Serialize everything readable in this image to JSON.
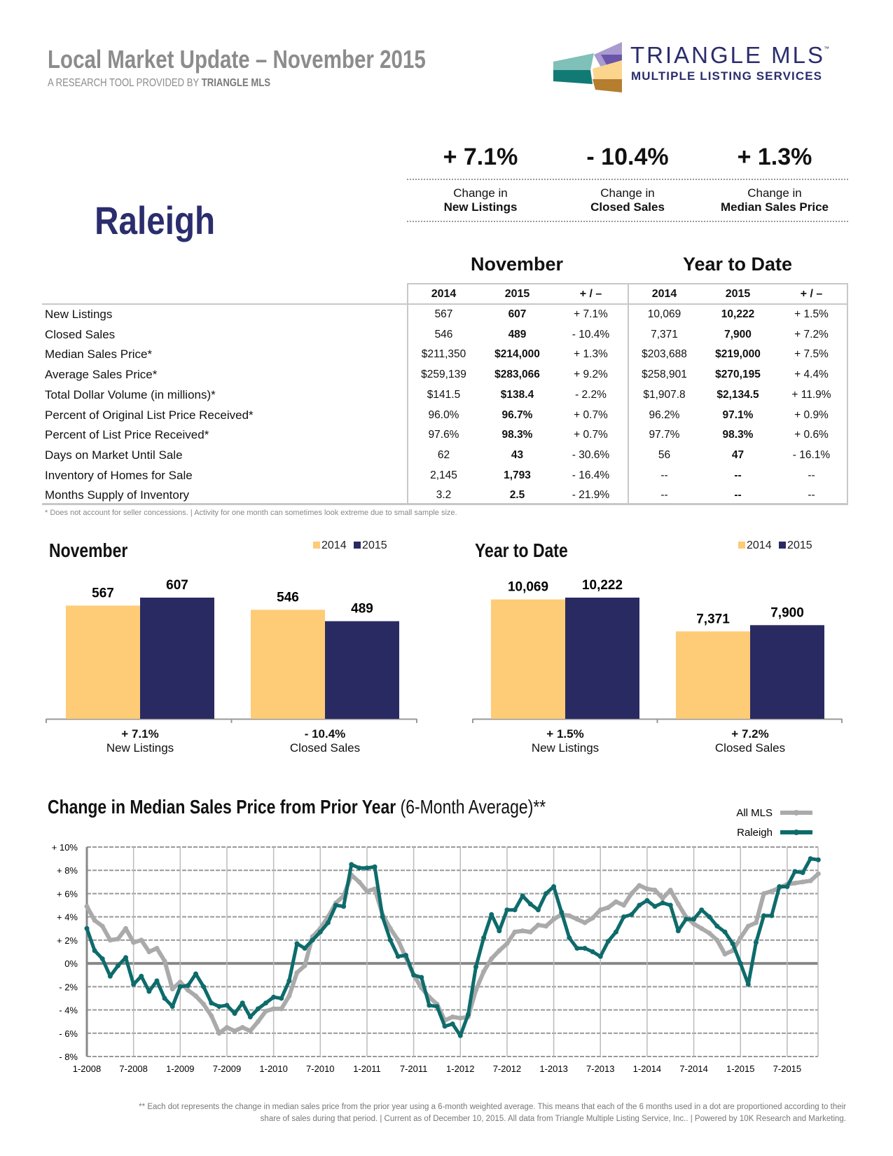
{
  "header": {
    "title": "Local Market Update – November 2015",
    "subtitle_prefix": "A RESEARCH TOOL PROVIDED BY ",
    "subtitle_brand": "TRIANGLE MLS",
    "logo_text": "TRIANGLE MLS",
    "logo_tm": "™",
    "logo_tagline": "MULTIPLE LISTING SERVICES"
  },
  "area": "Raleigh",
  "kpis": [
    {
      "value": "+ 7.1%",
      "line1": "Change in",
      "line2": "New Listings"
    },
    {
      "value": "- 10.4%",
      "line1": "Change in",
      "line2": "Closed Sales"
    },
    {
      "value": "+ 1.3%",
      "line1": "Change in",
      "line2": "Median Sales Price"
    }
  ],
  "table": {
    "group1": "November",
    "group2": "Year to Date",
    "columns": [
      "2014",
      "2015",
      "+ / –",
      "2014",
      "2015",
      "+ / –"
    ],
    "rows": [
      {
        "label": "New Listings",
        "cells": [
          "567",
          "607",
          "+ 7.1%",
          "10,069",
          "10,222",
          "+ 1.5%"
        ]
      },
      {
        "label": "Closed Sales",
        "cells": [
          "546",
          "489",
          "- 10.4%",
          "7,371",
          "7,900",
          "+ 7.2%"
        ]
      },
      {
        "label": "Median Sales Price*",
        "cells": [
          "$211,350",
          "$214,000",
          "+ 1.3%",
          "$203,688",
          "$219,000",
          "+ 7.5%"
        ]
      },
      {
        "label": "Average Sales Price*",
        "cells": [
          "$259,139",
          "$283,066",
          "+ 9.2%",
          "$258,901",
          "$270,195",
          "+ 4.4%"
        ]
      },
      {
        "label": "Total Dollar Volume (in millions)*",
        "cells": [
          "$141.5",
          "$138.4",
          "- 2.2%",
          "$1,907.8",
          "$2,134.5",
          "+ 11.9%"
        ]
      },
      {
        "label": "Percent of Original List Price Received*",
        "cells": [
          "96.0%",
          "96.7%",
          "+ 0.7%",
          "96.2%",
          "97.1%",
          "+ 0.9%"
        ]
      },
      {
        "label": "Percent of List Price Received*",
        "cells": [
          "97.6%",
          "98.3%",
          "+ 0.7%",
          "97.7%",
          "98.3%",
          "+ 0.6%"
        ]
      },
      {
        "label": "Days on Market Until Sale",
        "cells": [
          "62",
          "43",
          "- 30.6%",
          "56",
          "47",
          "- 16.1%"
        ]
      },
      {
        "label": "Inventory of Homes for Sale",
        "cells": [
          "2,145",
          "1,793",
          "- 16.4%",
          "--",
          "--",
          "--"
        ]
      },
      {
        "label": "Months Supply of Inventory",
        "cells": [
          "3.2",
          "2.5",
          "- 21.9%",
          "--",
          "--",
          "--"
        ]
      }
    ],
    "footnote": "* Does not account for seller concessions.  |  Activity for one month can sometimes look extreme due to small sample size."
  },
  "chart_data": [
    {
      "type": "bar",
      "title": "November",
      "categories": [
        "New Listings",
        "Closed Sales"
      ],
      "category_changes": [
        "+ 7.1%",
        "- 10.4%"
      ],
      "series": [
        {
          "name": "2014",
          "values": [
            567,
            546
          ],
          "labels": [
            "567",
            "546"
          ],
          "color": "#fecb77"
        },
        {
          "name": "2015",
          "values": [
            607,
            489
          ],
          "labels": [
            "607",
            "489"
          ],
          "color": "#2a2a62"
        }
      ],
      "ylim": [
        0,
        607
      ]
    },
    {
      "type": "bar",
      "title": "Year to Date",
      "categories": [
        "New Listings",
        "Closed Sales"
      ],
      "category_changes": [
        "+ 1.5%",
        "+ 7.2%"
      ],
      "series": [
        {
          "name": "2014",
          "values": [
            10069,
            7371
          ],
          "labels": [
            "10,069",
            "7,371"
          ],
          "color": "#fecb77"
        },
        {
          "name": "2015",
          "values": [
            10222,
            7900
          ],
          "labels": [
            "10,222",
            "7,900"
          ],
          "color": "#2a2a62"
        }
      ],
      "ylim": [
        0,
        10222
      ]
    },
    {
      "type": "line",
      "title_bold": "Change in Median Sales Price from Prior Year",
      "title_rest": " (6-Month Average)**",
      "x_start": "1-2008",
      "x_end": "11-2015",
      "x_ticks": [
        "1-2008",
        "7-2008",
        "1-2009",
        "7-2009",
        "1-2010",
        "7-2010",
        "1-2011",
        "7-2011",
        "1-2012",
        "7-2012",
        "1-2013",
        "7-2013",
        "1-2014",
        "7-2014",
        "1-2015",
        "7-2015"
      ],
      "y_ticks": [
        "+ 10%",
        "+ 8%",
        "+ 6%",
        "+ 4%",
        "+ 2%",
        "0%",
        "- 2%",
        "- 4%",
        "- 6%",
        "- 8%"
      ],
      "ylim": [
        -8,
        10
      ],
      "grid": true,
      "legend": "top-right",
      "series": [
        {
          "name": "All MLS",
          "color": "#aaaaaa",
          "values": [
            4.9,
            3.7,
            3.2,
            2.0,
            2.1,
            3.0,
            1.8,
            2.0,
            1.0,
            1.3,
            0.2,
            -2.2,
            -1.6,
            -2.3,
            -2.8,
            -3.5,
            -4.5,
            -6.0,
            -5.5,
            -5.8,
            -5.5,
            -5.8,
            -5.0,
            -4.1,
            -3.9,
            -3.9,
            -2.8,
            -0.8,
            -0.2,
            2.3,
            3.0,
            4.0,
            5.2,
            5.8,
            7.6,
            7.0,
            6.2,
            6.4,
            4.2,
            3.0,
            2.0,
            0.5,
            -1.0,
            -2.1,
            -2.9,
            -3.5,
            -4.9,
            -4.6,
            -4.7,
            -4.6,
            -2.3,
            -0.7,
            0.4,
            1.1,
            1.7,
            2.7,
            2.8,
            2.7,
            3.3,
            3.2,
            3.8,
            4.2,
            4.1,
            3.8,
            3.5,
            3.9,
            4.6,
            4.8,
            5.3,
            5.0,
            6.0,
            6.7,
            6.4,
            6.3,
            5.6,
            6.3,
            5.1,
            4.0,
            3.4,
            3.0,
            2.6,
            2.0,
            0.8,
            1.1,
            2.2,
            3.2,
            3.5,
            6.0,
            6.2,
            6.5,
            6.8,
            6.9,
            7.0,
            7.1,
            7.7
          ]
        },
        {
          "name": "Raleigh",
          "color": "#0e6b6b",
          "values": [
            3.0,
            1.1,
            0.4,
            -1.1,
            -0.2,
            0.5,
            -1.8,
            -1.1,
            -2.4,
            -1.5,
            -3.0,
            -3.7,
            -2.0,
            -1.9,
            -0.9,
            -2.0,
            -3.4,
            -3.7,
            -3.6,
            -4.3,
            -3.4,
            -4.6,
            -3.9,
            -3.4,
            -2.9,
            -3.0,
            -1.5,
            1.7,
            1.3,
            2.0,
            2.7,
            3.5,
            5.0,
            4.9,
            8.5,
            8.2,
            8.2,
            8.3,
            4.0,
            2.0,
            0.6,
            0.7,
            -1.0,
            -1.2,
            -3.6,
            -3.7,
            -5.4,
            -5.2,
            -6.2,
            -4.4,
            -0.3,
            2.2,
            4.2,
            2.8,
            4.6,
            4.6,
            5.8,
            5.1,
            4.6,
            6.0,
            6.6,
            4.4,
            2.2,
            1.3,
            1.3,
            1.0,
            0.6,
            1.9,
            2.7,
            4.0,
            4.2,
            5.0,
            5.4,
            4.9,
            5.2,
            5.0,
            2.8,
            3.8,
            3.8,
            4.6,
            4.0,
            3.2,
            2.7,
            1.7,
            0.0,
            -1.8,
            1.8,
            4.1,
            4.1,
            6.6,
            6.6,
            7.9,
            7.8,
            9.0,
            8.9
          ]
        }
      ]
    }
  ],
  "line_footnote_1": "** Each dot represents the change in median sales price from the prior year using a 6-month weighted average. This means that each of the 6 months used in a dot are proportioned according to their",
  "line_footnote_2": "share of sales during that period.  |  Current as of December 10, 2015. All data from Triangle Multiple Listing Service, Inc..  |  Powered by 10K Research and Marketing."
}
